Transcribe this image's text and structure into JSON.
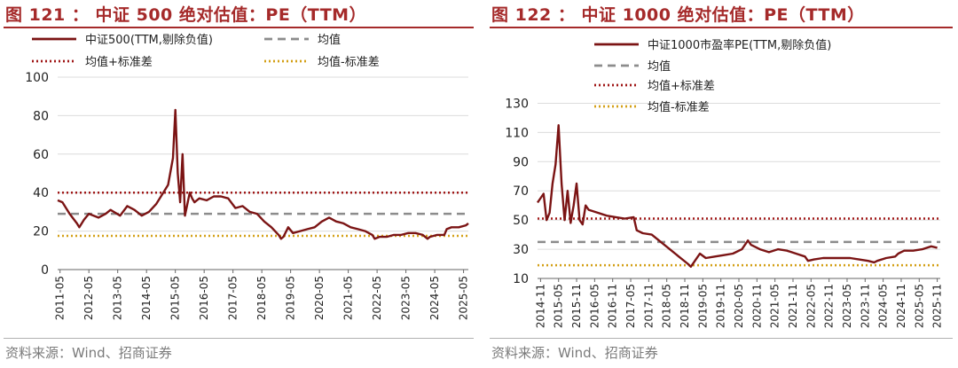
{
  "charts": [
    {
      "title": "图 121 ： 中证 500 绝对估值：PE（TTM）",
      "source": "资料来源：Wind、招商证券",
      "chart_data": {
        "type": "line",
        "ylim": [
          0,
          100
        ],
        "yticks": [
          "0",
          "20",
          "40",
          "60",
          "80",
          "100"
        ],
        "xticks": [
          "2011-05",
          "2012-05",
          "2013-05",
          "2014-05",
          "2015-05",
          "2016-05",
          "2017-05",
          "2018-05",
          "2019-05",
          "2020-05",
          "2021-05",
          "2022-05",
          "2023-05",
          "2024-05",
          "2025-05"
        ],
        "xrange": [
          "2011-04",
          "2025-07"
        ],
        "grid": true,
        "legend_position": "top",
        "series": [
          {
            "name": "中证500(TTM,剔除负值)",
            "color": "#7b1414",
            "x": [
              "2011-04",
              "2011-06",
              "2011-09",
              "2011-12",
              "2012-01",
              "2012-03",
              "2012-05",
              "2012-09",
              "2012-12",
              "2013-02",
              "2013-06",
              "2013-09",
              "2013-12",
              "2014-03",
              "2014-06",
              "2014-09",
              "2014-12",
              "2015-02",
              "2015-04",
              "2015-05",
              "2015-06",
              "2015-07",
              "2015-08",
              "2015-09",
              "2015-11",
              "2015-12",
              "2016-01",
              "2016-03",
              "2016-06",
              "2016-09",
              "2016-12",
              "2017-03",
              "2017-06",
              "2017-09",
              "2017-12",
              "2018-03",
              "2018-06",
              "2018-09",
              "2018-12",
              "2019-01",
              "2019-02",
              "2019-04",
              "2019-06",
              "2019-09",
              "2019-12",
              "2020-03",
              "2020-06",
              "2020-09",
              "2020-12",
              "2021-03",
              "2021-06",
              "2021-09",
              "2021-12",
              "2022-03",
              "2022-04",
              "2022-06",
              "2022-09",
              "2022-12",
              "2023-03",
              "2023-06",
              "2023-09",
              "2023-12",
              "2024-02",
              "2024-03",
              "2024-06",
              "2024-09",
              "2024-10",
              "2024-12",
              "2025-03",
              "2025-06",
              "2025-07"
            ],
            "y": [
              36,
              35,
              29,
              24,
              22,
              26,
              29,
              27,
              29,
              31,
              28,
              33,
              31,
              28,
              30,
              34,
              40,
              44,
              58,
              83,
              50,
              35,
              60,
              28,
              40,
              37,
              35,
              37,
              36,
              38,
              38,
              37,
              32,
              33,
              30,
              29,
              25,
              22,
              18,
              16,
              17,
              22,
              19,
              20,
              21,
              22,
              25,
              27,
              25,
              24,
              22,
              21,
              20,
              18,
              16,
              17,
              17,
              18,
              18,
              19,
              19,
              18,
              16,
              17,
              18,
              18,
              21,
              22,
              22,
              23,
              24
            ]
          }
        ],
        "reference_lines": [
          {
            "name": "均值",
            "value": 29,
            "color": "#8c8c8c",
            "style": "dashed"
          },
          {
            "name": "均值+标准差",
            "value": 40,
            "color": "#a01818",
            "style": "dotted"
          },
          {
            "name": "均值-标准差",
            "value": 17.5,
            "color": "#d4a017",
            "style": "dotted"
          }
        ]
      }
    },
    {
      "title": "图 122 ： 中证 1000 绝对估值：PE（TTM）",
      "source": "资料来源：Wind、招商证券",
      "chart_data": {
        "type": "line",
        "ylim": [
          10,
          140
        ],
        "yticks": [
          "10",
          "30",
          "50",
          "70",
          "90",
          "110",
          "130"
        ],
        "xticks": [
          "2014-11",
          "2015-05",
          "2015-11",
          "2016-05",
          "2016-11",
          "2017-05",
          "2017-11",
          "2018-05",
          "2018-11",
          "2019-05",
          "2019-11",
          "2020-05",
          "2020-11",
          "2021-05",
          "2021-11",
          "2022-05",
          "2022-11",
          "2023-05",
          "2023-11",
          "2024-05",
          "2024-11",
          "2025-05",
          "2025-11"
        ],
        "xrange": [
          "2014-10",
          "2025-12"
        ],
        "grid": true,
        "legend_position": "top",
        "series": [
          {
            "name": "中证1000市盈率PE(TTM,剔除负值)",
            "color": "#7b1414",
            "x": [
              "2014-10",
              "2014-11",
              "2014-12",
              "2015-01",
              "2015-02",
              "2015-03",
              "2015-04",
              "2015-05",
              "2015-06",
              "2015-07",
              "2015-08",
              "2015-09",
              "2015-10",
              "2015-11",
              "2015-12",
              "2016-01",
              "2016-02",
              "2016-03",
              "2016-06",
              "2016-09",
              "2016-12",
              "2017-03",
              "2017-06",
              "2017-07",
              "2017-09",
              "2017-12",
              "2018-03",
              "2018-06",
              "2018-09",
              "2018-12",
              "2019-01",
              "2019-02",
              "2019-04",
              "2019-06",
              "2019-09",
              "2019-12",
              "2020-03",
              "2020-06",
              "2020-08",
              "2020-09",
              "2020-12",
              "2021-03",
              "2021-06",
              "2021-09",
              "2021-12",
              "2022-03",
              "2022-04",
              "2022-06",
              "2022-09",
              "2022-12",
              "2023-03",
              "2023-06",
              "2023-09",
              "2023-12",
              "2024-02",
              "2024-03",
              "2024-06",
              "2024-09",
              "2024-10",
              "2024-12",
              "2025-03",
              "2025-06",
              "2025-09",
              "2025-11"
            ],
            "y": [
              62,
              65,
              68,
              50,
              55,
              75,
              88,
              115,
              75,
              50,
              70,
              48,
              60,
              75,
              50,
              47,
              60,
              57,
              55,
              53,
              52,
              51,
              52,
              43,
              41,
              40,
              35,
              30,
              25,
              20,
              18,
              21,
              27,
              24,
              25,
              26,
              27,
              30,
              36,
              33,
              30,
              28,
              30,
              29,
              27,
              25,
              22,
              23,
              24,
              24,
              24,
              24,
              23,
              22,
              21,
              22,
              24,
              25,
              27,
              29,
              29,
              30,
              32,
              31
            ]
          }
        ],
        "reference_lines": [
          {
            "name": "均值",
            "value": 35,
            "color": "#8c8c8c",
            "style": "dashed"
          },
          {
            "name": "均值+标准差",
            "value": 51,
            "color": "#a01818",
            "style": "dotted"
          },
          {
            "name": "均值-标准差",
            "value": 19,
            "color": "#d4a017",
            "style": "dotted"
          }
        ]
      }
    }
  ]
}
